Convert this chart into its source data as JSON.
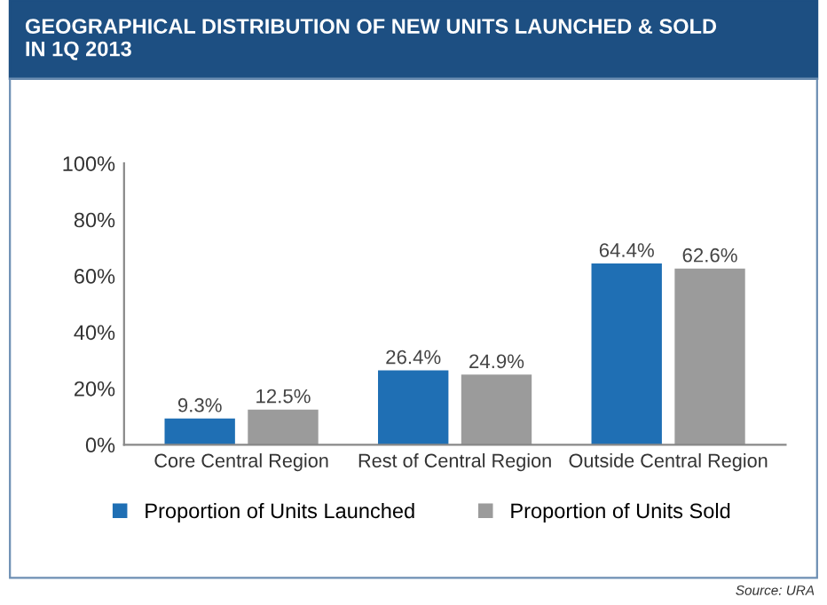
{
  "chart_data": {
    "type": "bar",
    "title": "GEOGRAPHICAL DISTRIBUTION OF NEW UNITS LAUNCHED & SOLD\nIN 1Q 2013",
    "categories": [
      "Core Central Region",
      "Rest of Central Region",
      "Outside Central Region"
    ],
    "series": [
      {
        "name": "Proportion of Units Launched",
        "color": "#1f6fb4",
        "values": [
          9.3,
          26.4,
          64.4
        ],
        "value_labels": [
          "9.3%",
          "26.4%",
          "64.4%"
        ]
      },
      {
        "name": "Proportion of Units Sold",
        "color": "#9b9b9b",
        "values": [
          12.5,
          24.9,
          62.6
        ],
        "value_labels": [
          "12.5%",
          "24.9%",
          "62.6%"
        ]
      }
    ],
    "ylim": [
      0,
      100
    ],
    "yticks": [
      {
        "value": 0,
        "label": "0%"
      },
      {
        "value": 20,
        "label": "20%"
      },
      {
        "value": 40,
        "label": "40%"
      },
      {
        "value": 60,
        "label": "60%"
      },
      {
        "value": 80,
        "label": "80%"
      },
      {
        "value": 100,
        "label": "100%"
      }
    ],
    "grid": false,
    "legend": "bottom",
    "annotations": [
      "Source: URA"
    ]
  }
}
